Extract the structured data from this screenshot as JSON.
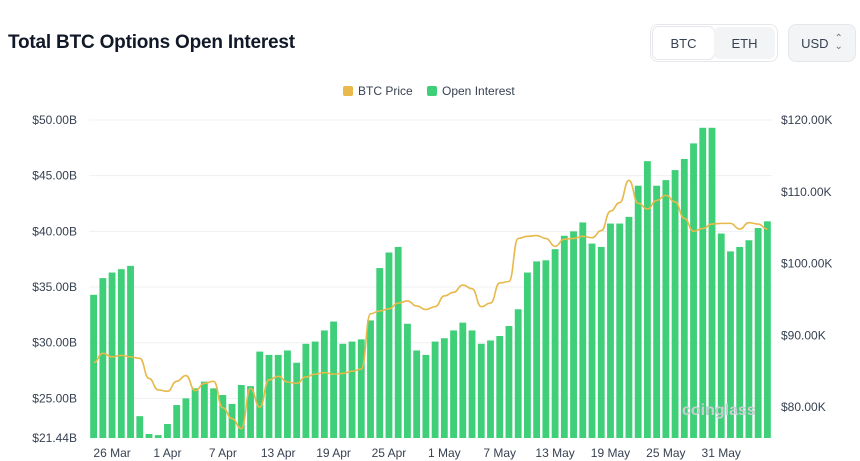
{
  "header": {
    "title": "Total BTC Options Open Interest",
    "asset_options": [
      "BTC",
      "ETH"
    ],
    "selected_asset": "BTC",
    "currency": "USD"
  },
  "watermark": "coinglass",
  "chart_data": {
    "type": "bar",
    "title": "Total BTC Options Open Interest",
    "legend": {
      "placement": "top-center",
      "entries": [
        "BTC Price",
        "Open Interest"
      ]
    },
    "colors": {
      "open_interest": "#3ecf78",
      "btc_price": "#e8b84a",
      "grid": "#eef0f3"
    },
    "x_tick_labels": [
      "26 Mar",
      "1 Apr",
      "7 Apr",
      "13 Apr",
      "19 Apr",
      "25 Apr",
      "1 May",
      "7 May",
      "13 May",
      "19 May",
      "25 May",
      "31 May"
    ],
    "x_tick_indices": [
      2,
      8,
      14,
      20,
      26,
      32,
      38,
      44,
      50,
      56,
      62,
      68
    ],
    "y_left": {
      "min": 21.44,
      "max": 50.0,
      "ticks": [
        21.44,
        25,
        30,
        35,
        40,
        45,
        50
      ],
      "tick_labels": [
        "$21.44B",
        "$25.00B",
        "$30.00B",
        "$35.00B",
        "$40.00B",
        "$45.00B",
        "$50.00B"
      ]
    },
    "y_right": {
      "min": 75.7,
      "max": 120.0,
      "ticks": [
        80,
        90,
        100,
        110,
        120
      ],
      "tick_labels": [
        "$80.00K",
        "$90.00K",
        "$100.00K",
        "$110.00K",
        "$120.00K"
      ]
    },
    "series": [
      {
        "name": "Open Interest",
        "axis": "left",
        "values": [
          34.3,
          35.8,
          36.3,
          36.6,
          36.9,
          23.4,
          21.8,
          21.7,
          22.7,
          24.4,
          25.0,
          25.9,
          26.5,
          25.9,
          25.3,
          24.5,
          26.2,
          26.1,
          29.2,
          28.9,
          28.9,
          29.3,
          28.2,
          29.9,
          30.1,
          31.1,
          31.9,
          29.9,
          30.1,
          30.3,
          32.0,
          36.7,
          38.1,
          38.6,
          31.7,
          29.3,
          28.9,
          30.1,
          30.4,
          31.1,
          31.8,
          31.1,
          29.9,
          30.2,
          30.6,
          31.5,
          33.0,
          36.3,
          37.3,
          37.4,
          38.4,
          39.6,
          40.0,
          40.8,
          38.9,
          38.6,
          40.7,
          40.7,
          41.3,
          44.1,
          46.3,
          44.1,
          44.6,
          45.5,
          46.5,
          47.9,
          49.3,
          49.3,
          39.8,
          38.2,
          38.6,
          39.2,
          40.3,
          40.9
        ]
      },
      {
        "name": "BTC Price",
        "axis": "right",
        "values": [
          86.2,
          87.5,
          87.0,
          87.2,
          87.0,
          86.8,
          84.0,
          82.4,
          82.2,
          83.6,
          84.4,
          82.3,
          83.3,
          83.6,
          79.9,
          78.4,
          77.0,
          82.6,
          80.0,
          83.8,
          84.3,
          83.5,
          83.3,
          84.2,
          84.6,
          84.8,
          84.6,
          84.7,
          85.0,
          85.3,
          93.0,
          93.4,
          93.7,
          94.5,
          94.8,
          94.1,
          93.6,
          94.0,
          95.5,
          96.0,
          97.0,
          96.5,
          94.0,
          94.5,
          97.3,
          97.5,
          103.5,
          103.8,
          103.9,
          103.5,
          102.4,
          103.4,
          103.5,
          103.8,
          103.6,
          104.6,
          107.3,
          108.5,
          111.6,
          108.4,
          107.6,
          108.8,
          109.5,
          108.6,
          106.3,
          104.5,
          104.9,
          105.5,
          105.6,
          105.6,
          104.8,
          105.7,
          105.5,
          104.8
        ]
      }
    ]
  }
}
